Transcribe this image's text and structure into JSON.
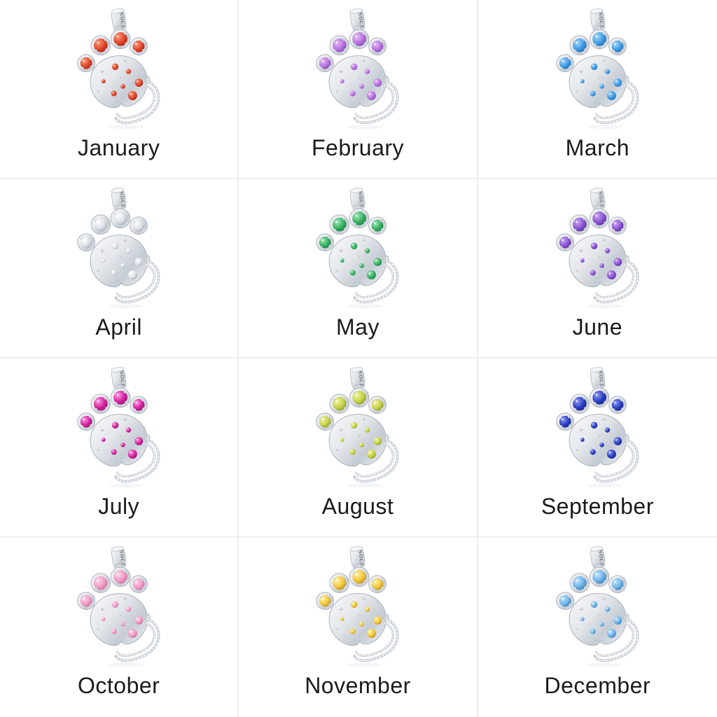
{
  "page": {
    "background": "#ffffff",
    "grid_line_color": "#ededee",
    "label_color": "#1b1b1d",
    "layout": "3 columns x 4 rows birthstone charm collage"
  },
  "charm": {
    "brand_text": "NOCE",
    "description": "silver paw-print dangle charm with safety chain",
    "metal_colors": {
      "light": "#f8f9fb",
      "mid": "#e4e7eb",
      "dark": "#c6ccd4",
      "edge": "#a3aab4"
    }
  },
  "months": [
    {
      "label": "January",
      "stone": {
        "light": "#ff9d7d",
        "mid": "#e0452a",
        "dark": "#9c190c"
      }
    },
    {
      "label": "February",
      "stone": {
        "light": "#e7bdf4",
        "mid": "#b873df",
        "dark": "#7a3aa8"
      }
    },
    {
      "label": "March",
      "stone": {
        "light": "#a8d8f8",
        "mid": "#3f9ce6",
        "dark": "#1a5da6"
      }
    },
    {
      "label": "April",
      "stone": {
        "light": "#ffffff",
        "mid": "#dde1e6",
        "dark": "#999fa9"
      }
    },
    {
      "label": "May",
      "stone": {
        "light": "#a5ecba",
        "mid": "#38b063",
        "dark": "#107538"
      }
    },
    {
      "label": "June",
      "stone": {
        "light": "#cda9f1",
        "mid": "#8a55d4",
        "dark": "#512390"
      }
    },
    {
      "label": "July",
      "stone": {
        "light": "#ff9fe2",
        "mid": "#d6219e",
        "dark": "#870f63"
      }
    },
    {
      "label": "August",
      "stone": {
        "light": "#f0f4a6",
        "mid": "#c5d248",
        "dark": "#7d8e1d"
      }
    },
    {
      "label": "September",
      "stone": {
        "light": "#8f9df2",
        "mid": "#2c3fc2",
        "dark": "#111b76"
      }
    },
    {
      "label": "October",
      "stone": {
        "light": "#ffd6ea",
        "mid": "#f09cc6",
        "dark": "#c05e92"
      }
    },
    {
      "label": "November",
      "stone": {
        "light": "#fff2ac",
        "mid": "#f2c83e",
        "dark": "#ab8012"
      }
    },
    {
      "label": "December",
      "stone": {
        "light": "#c9e6fb",
        "mid": "#6cb4e8",
        "dark": "#2d6ea8"
      }
    }
  ]
}
